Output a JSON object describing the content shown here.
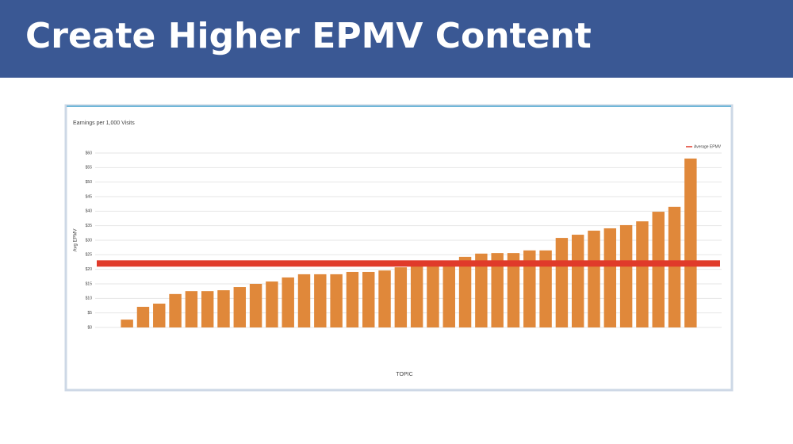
{
  "header": {
    "title": "Create Higher EPMV Content"
  },
  "chart_data": {
    "type": "bar",
    "title": "Earnings per 1,000 Visits",
    "x_label": "TOPIC",
    "y_label": "Avg EPMV",
    "categories": [
      null,
      null,
      null,
      null,
      null,
      null,
      null,
      null,
      null,
      null,
      null,
      null,
      null,
      null,
      null,
      null,
      null,
      null,
      null,
      null,
      null,
      null,
      null,
      null,
      null,
      null,
      null,
      null,
      null,
      null,
      null,
      null,
      null,
      null,
      null,
      null
    ],
    "values": [
      2.7,
      7.1,
      8.2,
      11.5,
      12.5,
      12.5,
      12.8,
      13.9,
      15,
      15.8,
      17.2,
      18.3,
      18.3,
      18.3,
      19.1,
      19.1,
      19.6,
      20.7,
      21,
      21.5,
      21.5,
      24.3,
      25.4,
      25.6,
      25.6,
      26.5,
      26.5,
      30.8,
      31.9,
      33.3,
      34.1,
      35.2,
      36.5,
      39.8,
      41.5,
      58.1
    ],
    "color": "#e0883a",
    "average": {
      "name": "Average EPMV",
      "value": 22,
      "color": "#e03a2a"
    },
    "ylim": [
      0,
      60
    ],
    "yticks": [
      {
        "value": 0,
        "label": "$0"
      },
      {
        "value": 5,
        "label": "$5"
      },
      {
        "value": 10,
        "label": "$10"
      },
      {
        "value": 15,
        "label": "$15"
      },
      {
        "value": 20,
        "label": "$20"
      },
      {
        "value": 25,
        "label": "$25"
      },
      {
        "value": 30,
        "label": "$30"
      },
      {
        "value": 35,
        "label": "$35"
      },
      {
        "value": 40,
        "label": "$40"
      },
      {
        "value": 45,
        "label": "$45"
      },
      {
        "value": 50,
        "label": "$50"
      },
      {
        "value": 55,
        "label": "$55"
      },
      {
        "value": 60,
        "label": "$60"
      }
    ],
    "grid": true,
    "legend": "top-right"
  }
}
